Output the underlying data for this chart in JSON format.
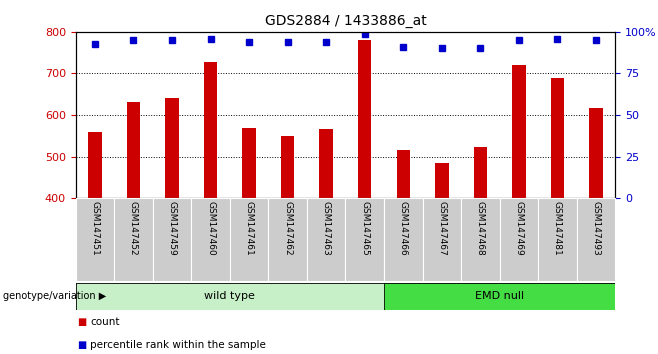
{
  "title": "GDS2884 / 1433886_at",
  "samples": [
    "GSM147451",
    "GSM147452",
    "GSM147459",
    "GSM147460",
    "GSM147461",
    "GSM147462",
    "GSM147463",
    "GSM147465",
    "GSM147466",
    "GSM147467",
    "GSM147468",
    "GSM147469",
    "GSM147481",
    "GSM147493"
  ],
  "counts": [
    560,
    632,
    642,
    727,
    570,
    549,
    566,
    780,
    515,
    485,
    523,
    720,
    690,
    617
  ],
  "percentile_ranks": [
    93,
    95,
    95,
    96,
    94,
    94,
    94,
    99,
    91,
    90,
    90,
    95,
    96,
    95
  ],
  "groups": [
    {
      "label": "wild type",
      "start": 0,
      "end": 7,
      "color": "#c8f0c8"
    },
    {
      "label": "EMD null",
      "start": 8,
      "end": 13,
      "color": "#44dd44"
    }
  ],
  "ymin": 400,
  "ymax": 800,
  "yticks": [
    400,
    500,
    600,
    700,
    800
  ],
  "y_right_ticks": [
    0,
    25,
    50,
    75,
    100
  ],
  "bar_color": "#cc0000",
  "dot_color": "#0000cc",
  "bar_bottom": 400,
  "genotype_label": "genotype/variation",
  "legend_count_label": "count",
  "legend_pct_label": "percentile rank within the sample",
  "bg_plot": "#ffffff",
  "bg_xtick": "#cccccc",
  "bar_width": 0.35
}
